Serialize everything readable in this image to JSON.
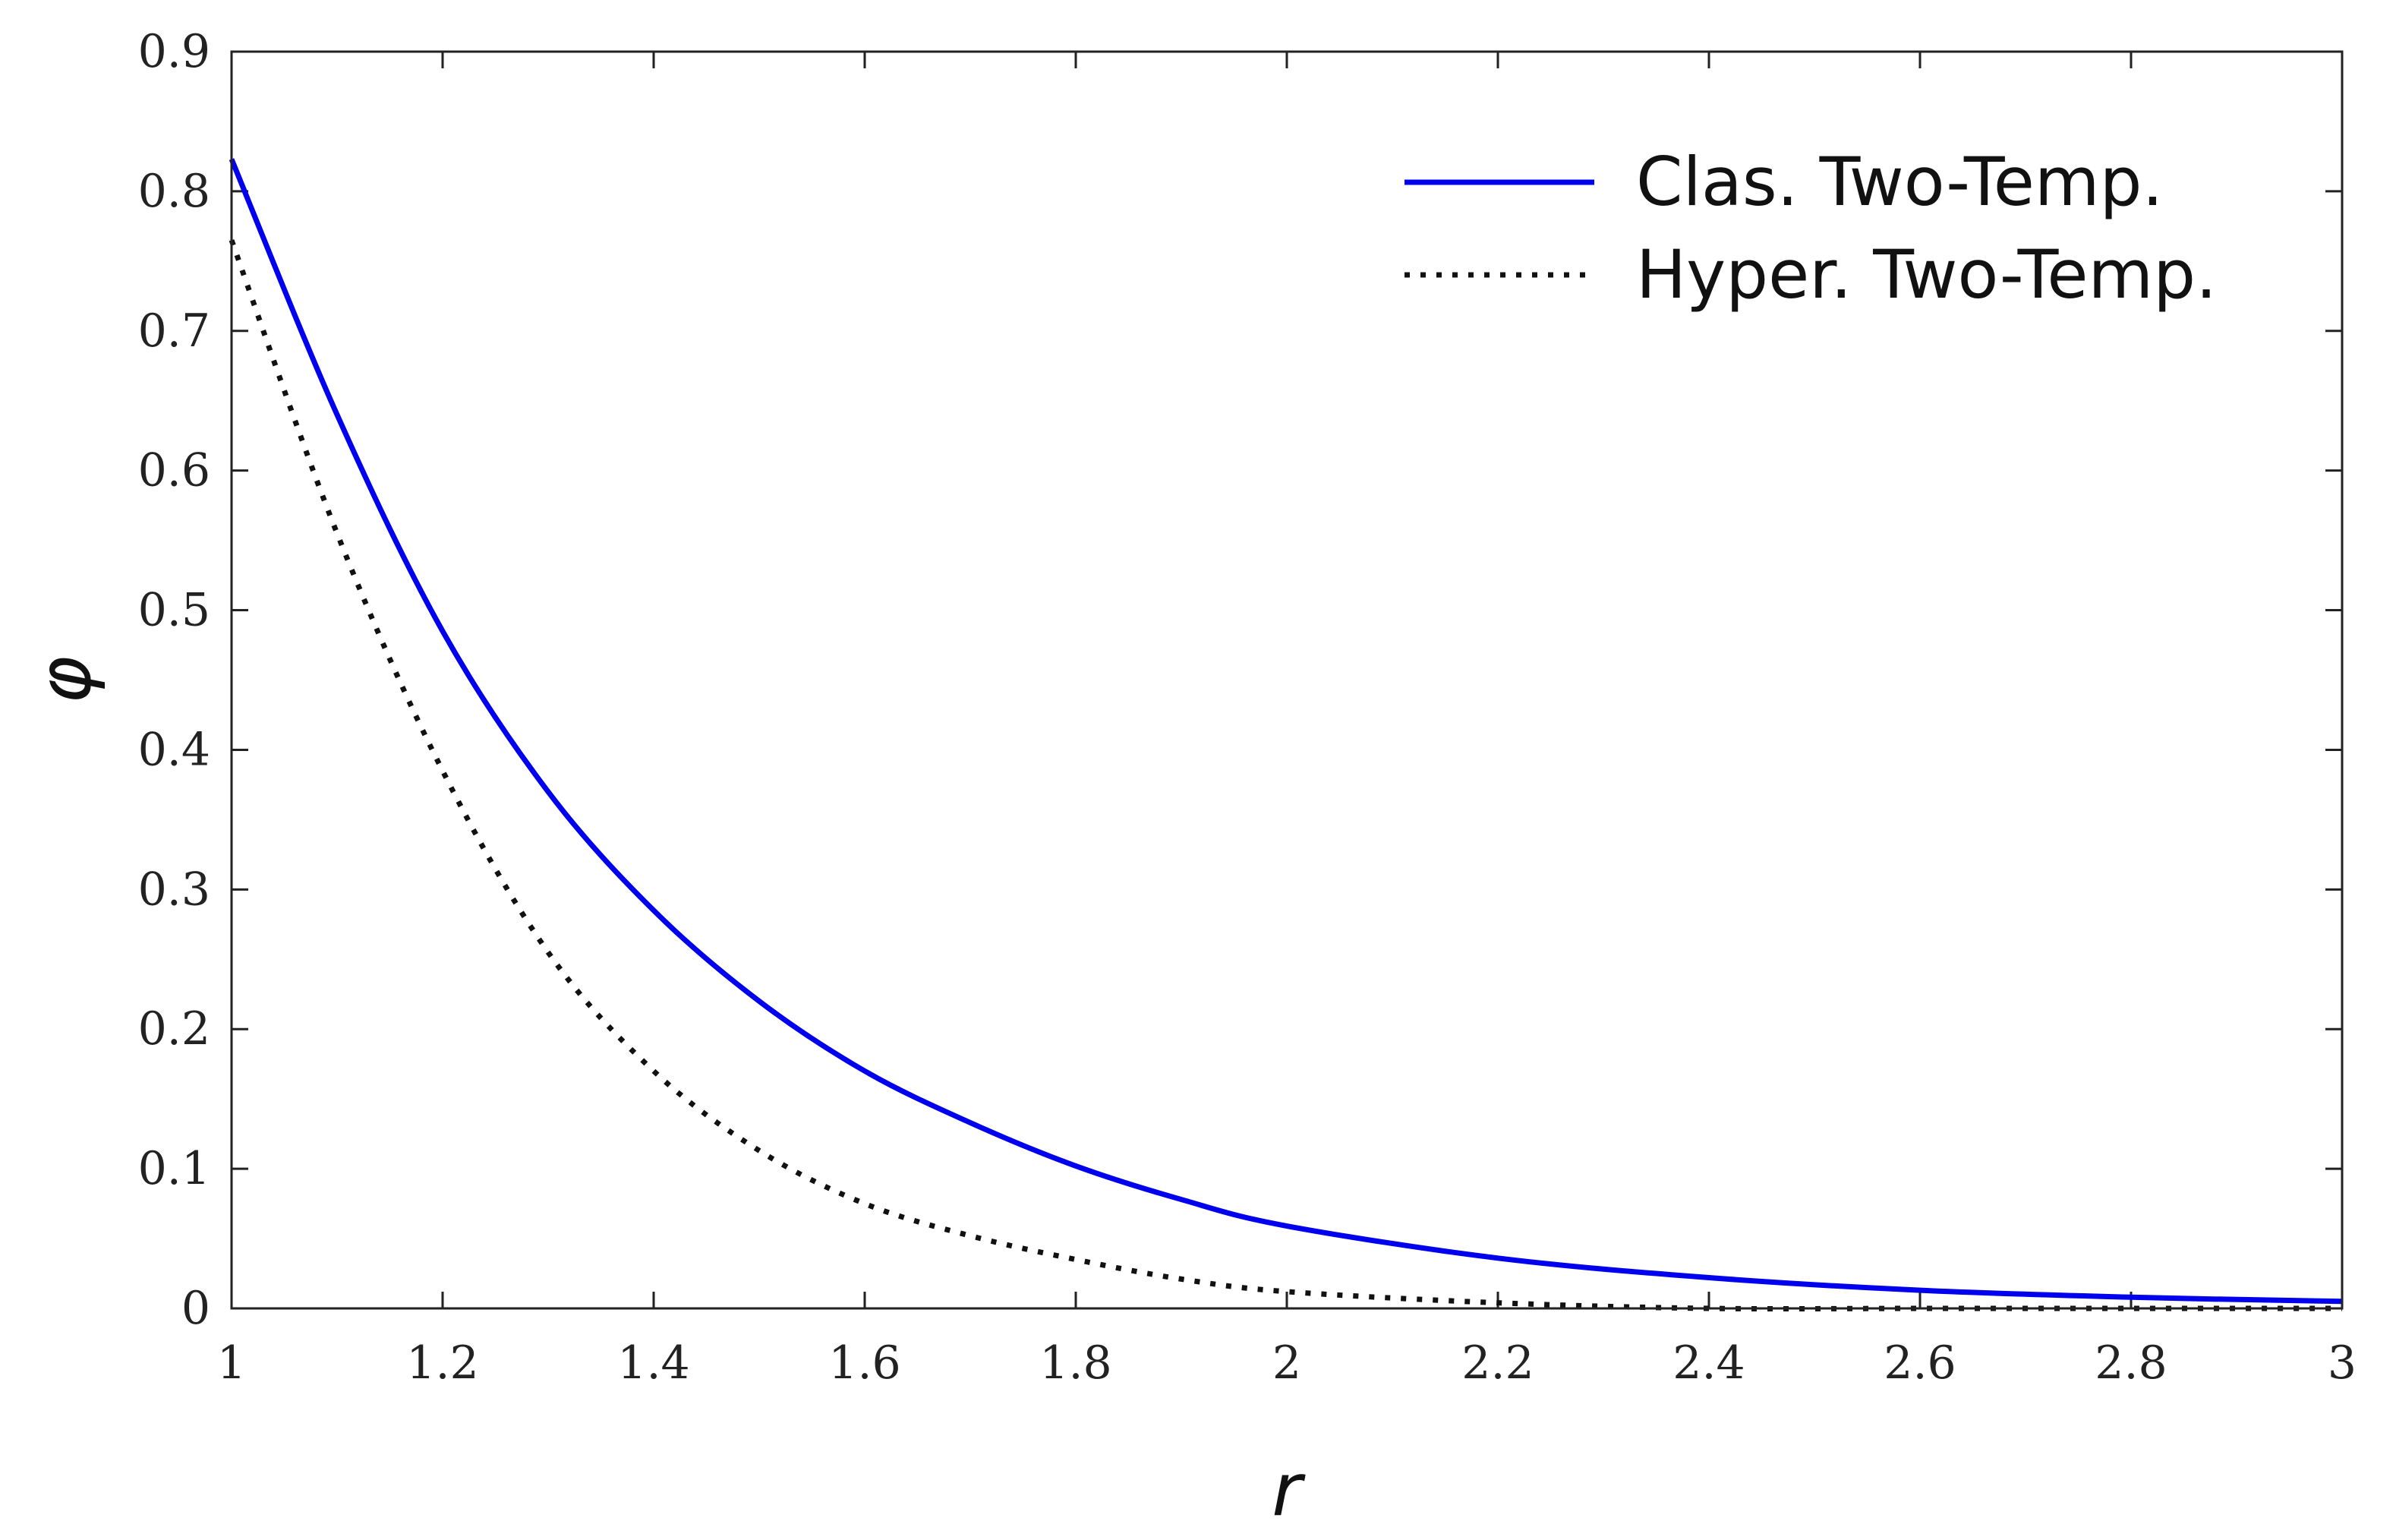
{
  "chart_data": {
    "type": "line",
    "title": "",
    "xlabel": "r",
    "ylabel": "φ",
    "xlim": [
      1,
      3
    ],
    "ylim": [
      0,
      0.9
    ],
    "grid": false,
    "box": true,
    "legend_position": "top-right",
    "x_ticks": [
      1,
      1.2,
      1.4,
      1.6,
      1.8,
      2,
      2.2,
      2.4,
      2.6,
      2.8,
      3
    ],
    "x_tick_labels": [
      "1",
      "1.2",
      "1.4",
      "1.6",
      "1.8",
      "2",
      "2.2",
      "2.4",
      "2.6",
      "2.8",
      "3"
    ],
    "y_ticks": [
      0,
      0.1,
      0.2,
      0.3,
      0.4,
      0.5,
      0.6,
      0.7,
      0.8,
      0.9
    ],
    "y_tick_labels": [
      "0",
      "0.1",
      "0.2",
      "0.3",
      "0.4",
      "0.5",
      "0.6",
      "0.7",
      "0.8",
      "0.9"
    ],
    "x": [
      1.0,
      1.1,
      1.2,
      1.3,
      1.4,
      1.5,
      1.6,
      1.7,
      1.8,
      1.9,
      2.0,
      2.2,
      2.4,
      2.6,
      2.8,
      3.0
    ],
    "series": [
      {
        "name": "Clas. Two-Temp.",
        "color": "#0000ee",
        "line_style": "solid",
        "values": [
          0.823,
          0.64,
          0.485,
          0.37,
          0.285,
          0.22,
          0.17,
          0.133,
          0.102,
          0.078,
          0.059,
          0.036,
          0.022,
          0.013,
          0.008,
          0.005
        ]
      },
      {
        "name": "Hyper. Two-Temp.",
        "color": "#111111",
        "line_style": "dotted",
        "values": [
          0.765,
          0.555,
          0.385,
          0.255,
          0.17,
          0.113,
          0.075,
          0.052,
          0.035,
          0.021,
          0.012,
          0.004,
          0.0,
          0.0,
          0.0,
          0.0
        ]
      }
    ]
  }
}
